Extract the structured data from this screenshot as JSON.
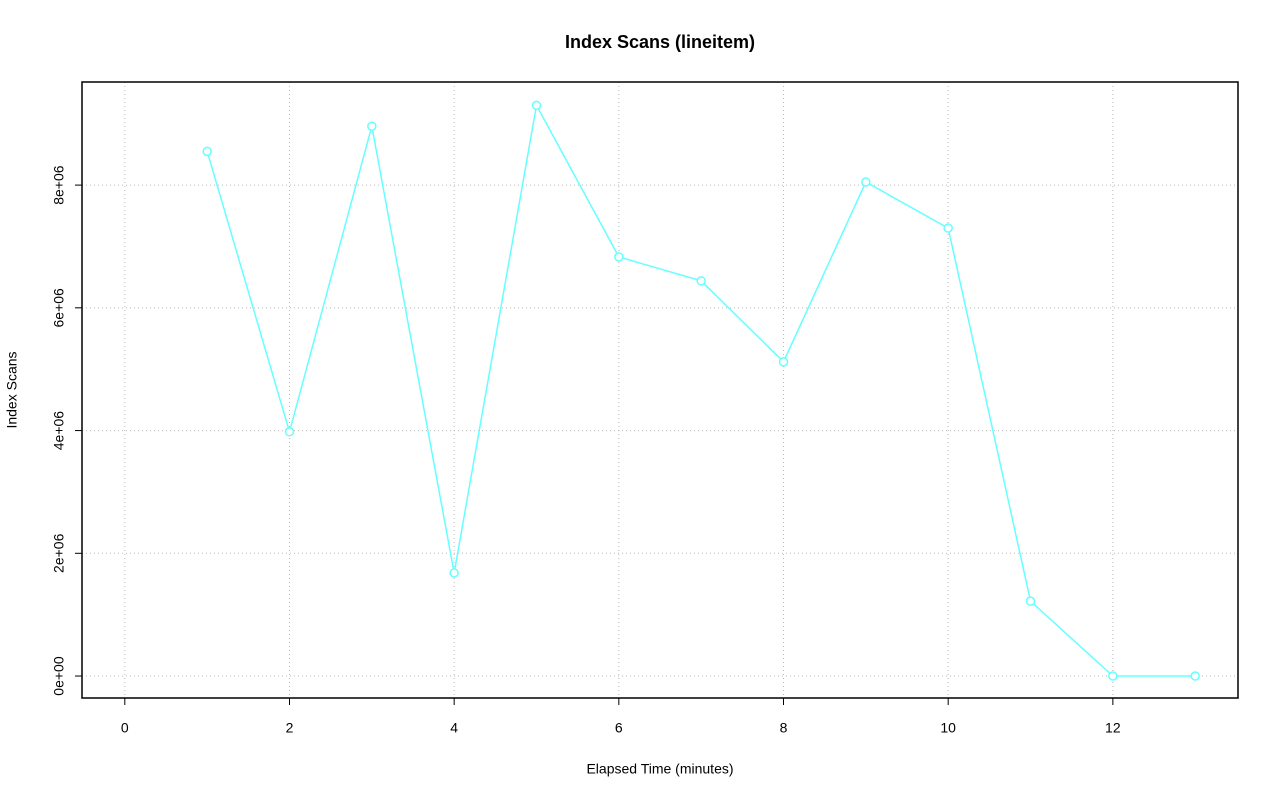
{
  "chart_data": {
    "type": "line",
    "title": "Index Scans (lineitem)",
    "x_label": "Elapsed Time (minutes)",
    "y_label": "Index Scans",
    "x": [
      1,
      2,
      3,
      4,
      5,
      6,
      7,
      8,
      9,
      10,
      11,
      12,
      13
    ],
    "values": [
      8550000,
      3980000,
      8960000,
      1680000,
      9300000,
      6830000,
      6440000,
      5120000,
      8050000,
      7300000,
      1220000,
      0,
      0
    ],
    "color": "#66ffff",
    "xlim": [
      -0.52,
      13.52
    ],
    "xticks": [
      0,
      2,
      4,
      6,
      8,
      10,
      12
    ],
    "ylim": [
      -358000,
      9680000
    ],
    "yticks": [
      {
        "value": 0,
        "label": "0e+00"
      },
      {
        "value": 2000000,
        "label": "2e+06"
      },
      {
        "value": 4000000,
        "label": "4e+06"
      },
      {
        "value": 6000000,
        "label": "6e+06"
      },
      {
        "value": 8000000,
        "label": "8e+06"
      }
    ],
    "grid": true
  }
}
